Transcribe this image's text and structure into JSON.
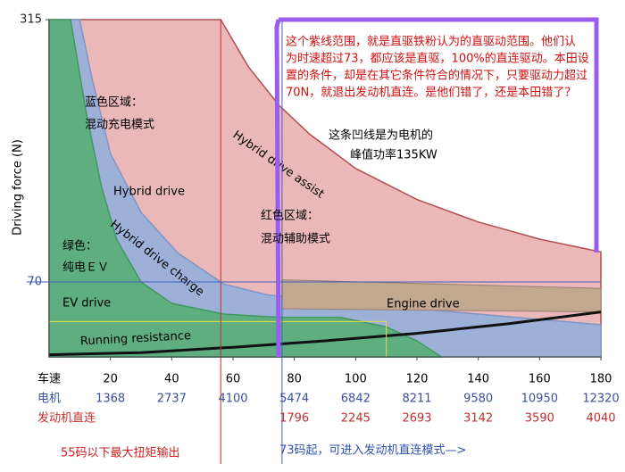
{
  "chart_data": {
    "type": "area",
    "ylabel": "Driving force (N)",
    "xlim": [
      0,
      180
    ],
    "ylim": [
      0,
      315
    ],
    "xticks": [
      20,
      40,
      60,
      80,
      100,
      120,
      140,
      160,
      180
    ],
    "yticks": [
      315,
      70
    ],
    "x_row_label": "车速",
    "motor_label": "电机",
    "motor_rpm": [
      1368,
      2737,
      4100,
      5474,
      6842,
      8211,
      9580,
      10950,
      12320
    ],
    "engine_label": "发动机直连",
    "engine_rpm": [
      null,
      null,
      null,
      1796,
      2245,
      2693,
      3142,
      3590,
      4040
    ],
    "series": [
      {
        "name": "Hybrid drive assist",
        "color": "#eab8b8",
        "line": "#b05050",
        "x": [
          0,
          56,
          65,
          75,
          85,
          100,
          120,
          140,
          160,
          180
        ],
        "values": [
          315,
          315,
          271,
          235,
          208,
          176,
          147,
          126,
          110,
          98
        ]
      },
      {
        "name": "Hybrid drive charge",
        "color": "#9db0d8",
        "line": "#7f95c8",
        "x": [
          6,
          10,
          14,
          20,
          30,
          42,
          57,
          71,
          80,
          180
        ],
        "values": [
          315,
          315,
          260,
          190,
          135,
          97,
          68,
          58,
          55,
          30
        ]
      },
      {
        "name": "EV drive",
        "color": "#5fae80",
        "line": "#3f9a60",
        "x": [
          0,
          7,
          12,
          17,
          22,
          30,
          40,
          57,
          75,
          95,
          110,
          120,
          128
        ],
        "values": [
          315,
          315,
          230,
          160,
          110,
          70,
          50,
          40,
          37,
          37,
          28,
          15,
          0
        ]
      },
      {
        "name": "Engine drive",
        "color": "#c2a88e",
        "line": "#9a8070",
        "x": [
          76,
          180
        ],
        "values": [
          72,
          64
        ],
        "base": [
          45,
          42
        ]
      },
      {
        "name": "Running resistance",
        "color": "#111111",
        "x": [
          0,
          30,
          60,
          90,
          120,
          150,
          180
        ],
        "values": [
          2,
          4,
          9,
          15,
          22,
          31,
          42
        ]
      }
    ],
    "hybrid_drive_label": "Hybrid drive",
    "yellow_limit": {
      "x": 110,
      "y": 33
    },
    "red_line_x": 56,
    "blue_line_x": 76,
    "notes": {
      "purple": [
        "这个紫线范围，就是直驱铁粉认为的直驱动范围。他们认",
        "为时速超过73，都应该是直驱，100%的直连驱动。本田设",
        "置的条件，却是在其它条件符合的情况下，只要驱动力超过",
        "70N，就退出发动机直连。是他们错了，还是本田错了？"
      ],
      "blue_region": [
        "蓝色区域：",
        "混动充电模式"
      ],
      "red_region": [
        "红色区域：",
        "混动辅助模式"
      ],
      "green_region": [
        "绿色：",
        "纯电ＥＶ"
      ],
      "curve": [
        "这条凹线是为电机的",
        "峰值功率135KW"
      ],
      "bottom_left": "55码以下最大扭矩输出",
      "bottom_right": "73码起，可进入发动机直连模式—>"
    }
  }
}
